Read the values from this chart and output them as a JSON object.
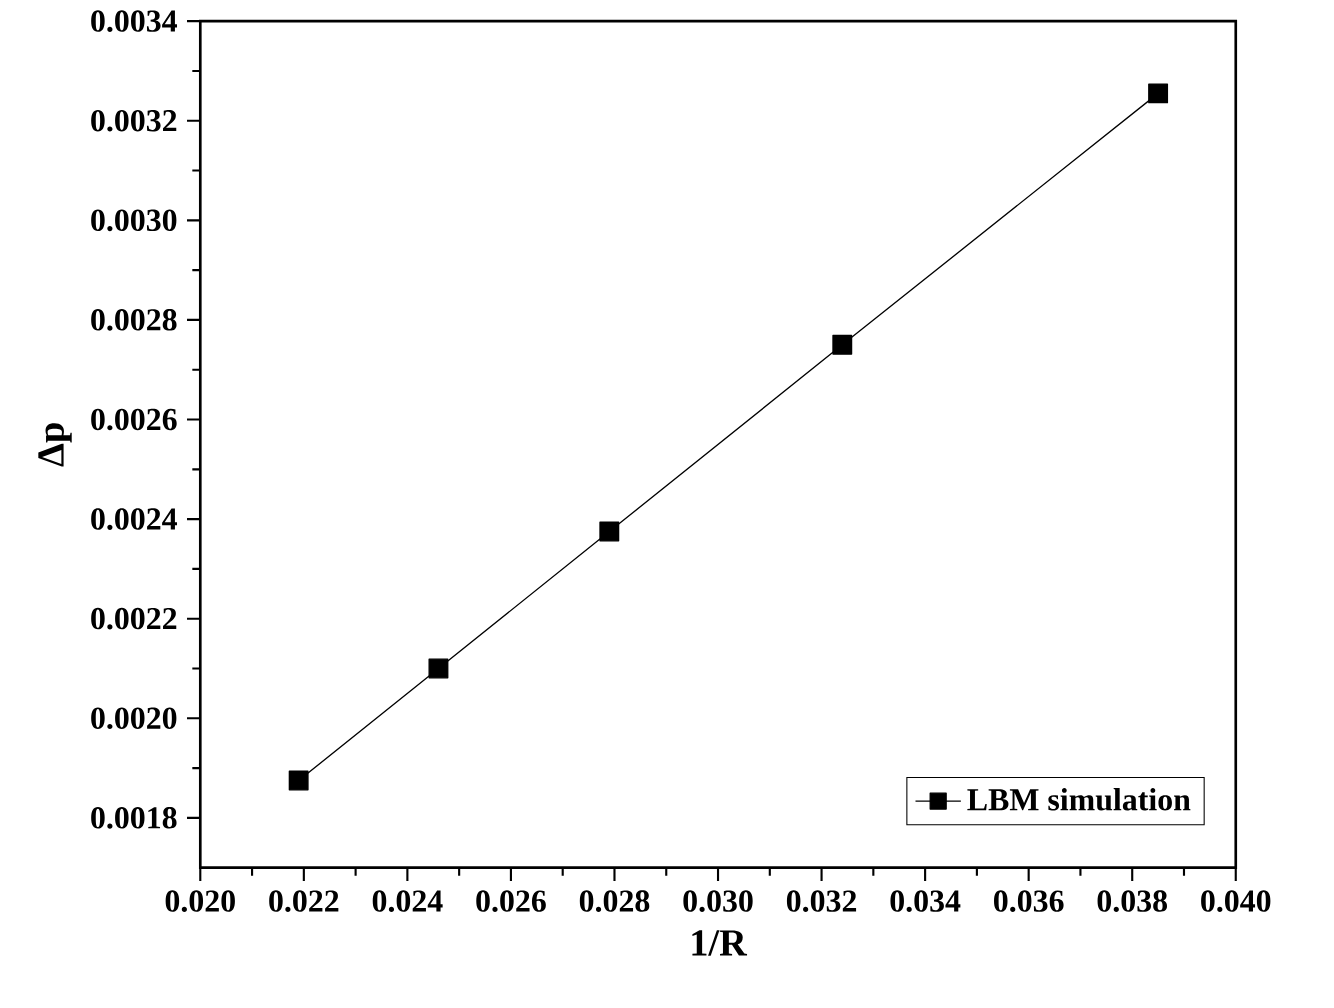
{
  "chart_data": {
    "type": "line",
    "xlabel": "1/R",
    "ylabel": "Δp",
    "series": [
      {
        "name": "LBM simulation",
        "color": "#000000",
        "x": [
          0.0219,
          0.0246,
          0.0279,
          0.0324,
          0.0385
        ],
        "values": [
          0.001875,
          0.0021,
          0.002375,
          0.00275,
          0.003255
        ]
      }
    ],
    "xlim": [
      0.02,
      0.04
    ],
    "xticks": [
      {
        "value": 0.02,
        "label": "0.020"
      },
      0.022,
      0.024,
      0.026,
      0.028,
      {
        "value": 0.03,
        "label": "0.030"
      },
      0.032,
      0.034,
      0.036,
      0.038,
      {
        "value": 0.04,
        "label": "0.040"
      }
    ],
    "ylim": [
      0.0017,
      0.0034
    ],
    "yticks": [
      0.0018,
      {
        "value": 0.002,
        "label": "0.0020"
      },
      0.0022,
      0.0024,
      0.0026,
      0.0028,
      {
        "value": 0.003,
        "label": "0.0030"
      },
      0.0032,
      0.0034
    ],
    "marker": "square",
    "line_style": "solid",
    "grid": false,
    "legend": "bottom right"
  }
}
